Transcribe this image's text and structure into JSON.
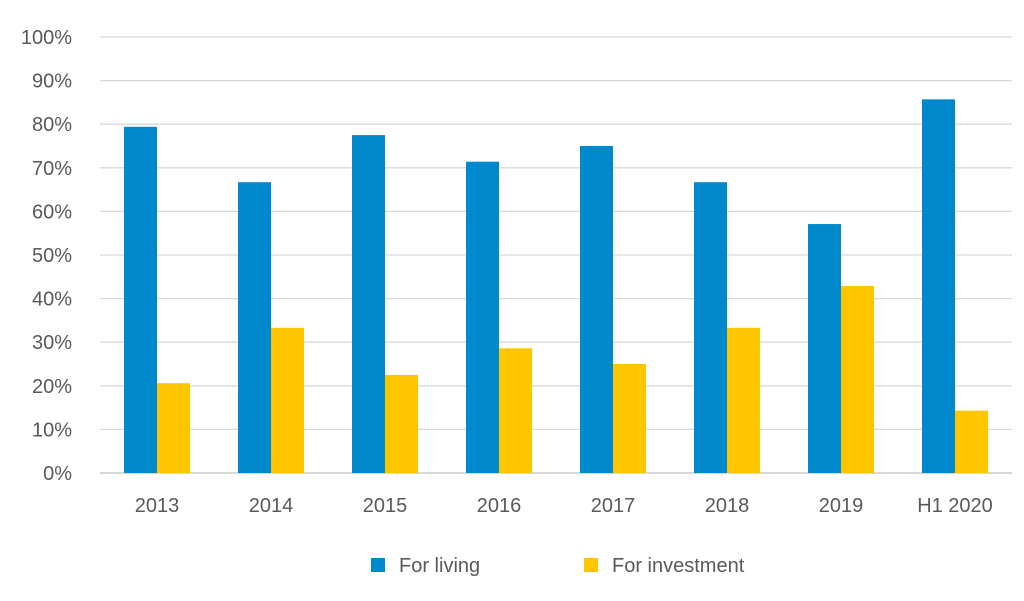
{
  "chart_data": {
    "type": "bar",
    "categories": [
      "2013",
      "2014",
      "2015",
      "2016",
      "2017",
      "2018",
      "2019",
      "H1 2020"
    ],
    "series": [
      {
        "name": "For living",
        "color": "#0088cc",
        "values": [
          79.4,
          66.7,
          77.5,
          71.4,
          75.0,
          66.7,
          57.1,
          85.7
        ]
      },
      {
        "name": "For investment",
        "color": "#ffc600",
        "values": [
          20.6,
          33.3,
          22.5,
          28.6,
          25.0,
          33.3,
          42.9,
          14.3
        ]
      }
    ],
    "ylim": [
      0,
      100
    ],
    "yticks": [
      0,
      10,
      20,
      30,
      40,
      50,
      60,
      70,
      80,
      90,
      100
    ],
    "ytick_suffix": "%",
    "grid": true,
    "legend": "bottom-center",
    "title": "",
    "xlabel": "",
    "ylabel": ""
  }
}
